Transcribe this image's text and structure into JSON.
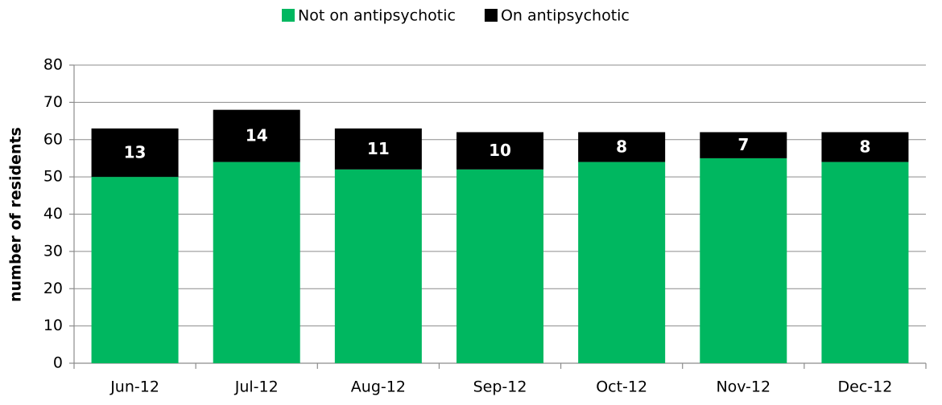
{
  "chart_data": {
    "type": "stacked_bar",
    "y_label": "number of residents",
    "categories": [
      "Jun-12",
      "Jul-12",
      "Aug-12",
      "Sep-12",
      "Oct-12",
      "Nov-12",
      "Dec-12"
    ],
    "series": [
      {
        "name": "Not on antipsychotic",
        "color": "#00b760",
        "values": [
          50,
          54,
          52,
          52,
          54,
          55,
          54
        ]
      },
      {
        "name": "On antipsychotic",
        "color": "#000000",
        "values": [
          13,
          14,
          11,
          10,
          8,
          7,
          8
        ],
        "show_labels": true
      }
    ],
    "ylim": [
      0,
      80
    ],
    "yticks": [
      0,
      10,
      20,
      30,
      40,
      50,
      60,
      70,
      80
    ],
    "grid": true,
    "legend": "top"
  }
}
